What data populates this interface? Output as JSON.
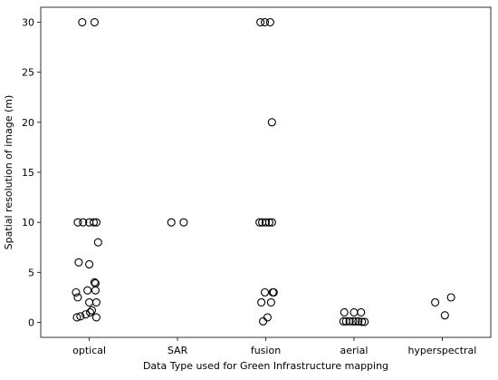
{
  "chart_data": {
    "type": "scatter",
    "xlabel": "Data Type used for Green Infrastructure mapping",
    "ylabel": "Spatial resolution of image (m)",
    "categories": [
      "optical",
      "SAR",
      "fusion",
      "aerial",
      "hyperspectral"
    ],
    "ylim": [
      -1.5,
      31.5
    ],
    "yticks": [
      0,
      5,
      10,
      15,
      20,
      25,
      30
    ],
    "grid": false,
    "marker": "open-circle",
    "points": [
      {
        "category": "optical",
        "jitter": -0.08,
        "y": 30
      },
      {
        "category": "optical",
        "jitter": 0.06,
        "y": 30
      },
      {
        "category": "optical",
        "jitter": -0.13,
        "y": 10
      },
      {
        "category": "optical",
        "jitter": -0.07,
        "y": 10
      },
      {
        "category": "optical",
        "jitter": 0.0,
        "y": 10
      },
      {
        "category": "optical",
        "jitter": 0.05,
        "y": 10
      },
      {
        "category": "optical",
        "jitter": 0.08,
        "y": 10
      },
      {
        "category": "optical",
        "jitter": 0.1,
        "y": 8
      },
      {
        "category": "optical",
        "jitter": -0.12,
        "y": 6
      },
      {
        "category": "optical",
        "jitter": 0.0,
        "y": 5.8
      },
      {
        "category": "optical",
        "jitter": 0.06,
        "y": 4
      },
      {
        "category": "optical",
        "jitter": 0.07,
        "y": 3.9
      },
      {
        "category": "optical",
        "jitter": -0.15,
        "y": 3
      },
      {
        "category": "optical",
        "jitter": -0.02,
        "y": 3.2
      },
      {
        "category": "optical",
        "jitter": 0.07,
        "y": 3.2
      },
      {
        "category": "optical",
        "jitter": -0.13,
        "y": 2.5
      },
      {
        "category": "optical",
        "jitter": 0.0,
        "y": 2
      },
      {
        "category": "optical",
        "jitter": 0.08,
        "y": 2
      },
      {
        "category": "optical",
        "jitter": 0.03,
        "y": 1.2
      },
      {
        "category": "optical",
        "jitter": 0.01,
        "y": 1
      },
      {
        "category": "optical",
        "jitter": -0.04,
        "y": 0.8
      },
      {
        "category": "optical",
        "jitter": -0.1,
        "y": 0.6
      },
      {
        "category": "optical",
        "jitter": -0.14,
        "y": 0.5
      },
      {
        "category": "optical",
        "jitter": 0.08,
        "y": 0.5
      },
      {
        "category": "SAR",
        "jitter": -0.07,
        "y": 10
      },
      {
        "category": "SAR",
        "jitter": 0.07,
        "y": 10
      },
      {
        "category": "fusion",
        "jitter": -0.06,
        "y": 30
      },
      {
        "category": "fusion",
        "jitter": -0.01,
        "y": 30
      },
      {
        "category": "fusion",
        "jitter": 0.05,
        "y": 30
      },
      {
        "category": "fusion",
        "jitter": 0.07,
        "y": 20
      },
      {
        "category": "fusion",
        "jitter": -0.07,
        "y": 10
      },
      {
        "category": "fusion",
        "jitter": -0.04,
        "y": 10
      },
      {
        "category": "fusion",
        "jitter": 0.0,
        "y": 10
      },
      {
        "category": "fusion",
        "jitter": 0.04,
        "y": 10
      },
      {
        "category": "fusion",
        "jitter": 0.07,
        "y": 10
      },
      {
        "category": "fusion",
        "jitter": -0.01,
        "y": 3
      },
      {
        "category": "fusion",
        "jitter": 0.08,
        "y": 3
      },
      {
        "category": "fusion",
        "jitter": 0.09,
        "y": 3
      },
      {
        "category": "fusion",
        "jitter": -0.05,
        "y": 2
      },
      {
        "category": "fusion",
        "jitter": 0.06,
        "y": 2
      },
      {
        "category": "fusion",
        "jitter": 0.02,
        "y": 0.5
      },
      {
        "category": "fusion",
        "jitter": -0.03,
        "y": 0.1
      },
      {
        "category": "aerial",
        "jitter": -0.11,
        "y": 1
      },
      {
        "category": "aerial",
        "jitter": 0.0,
        "y": 1
      },
      {
        "category": "aerial",
        "jitter": 0.08,
        "y": 1
      },
      {
        "category": "aerial",
        "jitter": -0.12,
        "y": 0.1
      },
      {
        "category": "aerial",
        "jitter": -0.09,
        "y": 0.1
      },
      {
        "category": "aerial",
        "jitter": -0.05,
        "y": 0.1
      },
      {
        "category": "aerial",
        "jitter": -0.01,
        "y": 0.1
      },
      {
        "category": "aerial",
        "jitter": 0.02,
        "y": 0.1
      },
      {
        "category": "aerial",
        "jitter": 0.05,
        "y": 0.1
      },
      {
        "category": "aerial",
        "jitter": 0.09,
        "y": 0.05
      },
      {
        "category": "aerial",
        "jitter": 0.12,
        "y": 0.05
      },
      {
        "category": "hyperspectral",
        "jitter": -0.08,
        "y": 2
      },
      {
        "category": "hyperspectral",
        "jitter": 0.1,
        "y": 2.5
      },
      {
        "category": "hyperspectral",
        "jitter": 0.03,
        "y": 0.7
      }
    ]
  }
}
